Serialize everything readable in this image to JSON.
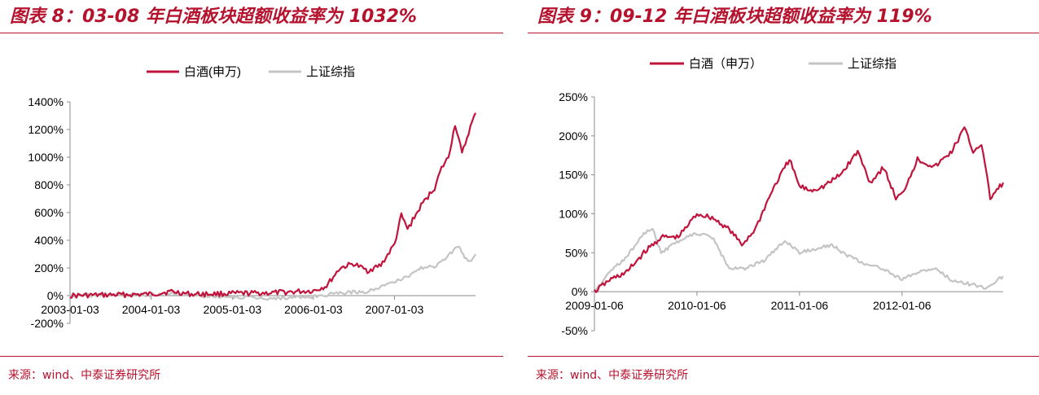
{
  "colors": {
    "accent": "#b5122e",
    "series_baijiu": "#c0143c",
    "series_index": "#c4c4c4"
  },
  "charts": [
    {
      "title": "图表 8：03-08 年白酒板块超额收益率为 1032%",
      "source": "来源：wind、中泰证券研究所",
      "chart_data": {
        "type": "line",
        "title": "",
        "xlabel": "",
        "ylabel": "",
        "x_range": [
          "2003-01-03",
          "2008-01-03"
        ],
        "ylim": [
          -200,
          1400
        ],
        "yticks": [
          -200,
          0,
          200,
          400,
          600,
          800,
          1000,
          1200,
          1400
        ],
        "ytick_labels": [
          "-200%",
          "0%",
          "200%",
          "400%",
          "600%",
          "800%",
          "1000%",
          "1200%",
          "1400%"
        ],
        "xticks": [
          "2003-01-03",
          "2004-01-03",
          "2005-01-03",
          "2006-01-03",
          "2007-01-03"
        ],
        "grid": false,
        "legend_position": "top-center",
        "series": [
          {
            "name": "白酒(申万)",
            "x": [
              "2003-01-03",
              "2003-07-03",
              "2004-01-03",
              "2004-04-03",
              "2004-07-03",
              "2005-01-03",
              "2005-07-03",
              "2006-01-03",
              "2006-03-03",
              "2006-05-03",
              "2006-07-03",
              "2006-09-03",
              "2006-11-03",
              "2007-01-03",
              "2007-02-03",
              "2007-03-03",
              "2007-05-03",
              "2007-07-03",
              "2007-08-03",
              "2007-09-03",
              "2007-10-03",
              "2007-10-20",
              "2007-11-03",
              "2007-12-03",
              "2008-01-03"
            ],
            "values": [
              0,
              5,
              10,
              30,
              10,
              15,
              20,
              35,
              70,
              200,
              230,
              180,
              220,
              370,
              580,
              480,
              650,
              780,
              920,
              1000,
              1240,
              1130,
              1020,
              1180,
              1320
            ]
          },
          {
            "name": "上证综指",
            "x": [
              "2003-01-03",
              "2003-07-03",
              "2004-01-03",
              "2004-04-03",
              "2004-07-03",
              "2005-01-03",
              "2005-07-03",
              "2006-01-03",
              "2006-05-03",
              "2006-09-03",
              "2007-01-03",
              "2007-03-03",
              "2007-05-03",
              "2007-07-03",
              "2007-09-03",
              "2007-10-20",
              "2007-11-15",
              "2007-12-15",
              "2008-01-03"
            ],
            "values": [
              0,
              5,
              5,
              20,
              0,
              -10,
              -20,
              -10,
              20,
              30,
              100,
              140,
              200,
              210,
              290,
              360,
              270,
              250,
              300
            ]
          }
        ]
      }
    },
    {
      "title": "图表 9：09-12 年白酒板块超额收益率为 119%",
      "source": "来源：wind、中泰证券研究所",
      "chart_data": {
        "type": "line",
        "title": "",
        "xlabel": "",
        "ylabel": "",
        "x_range": [
          "2009-01-06",
          "2012-12-31"
        ],
        "ylim": [
          -50,
          250
        ],
        "yticks": [
          -50,
          0,
          50,
          100,
          150,
          200,
          250
        ],
        "ytick_labels": [
          "-50%",
          "0%",
          "50%",
          "100%",
          "150%",
          "200%",
          "250%"
        ],
        "xticks": [
          "2009-01-06",
          "2010-01-06",
          "2011-01-06",
          "2012-01-06"
        ],
        "grid": false,
        "legend_position": "top-center",
        "series": [
          {
            "name": "白酒（申万）",
            "x": [
              "2009-01-06",
              "2009-03-01",
              "2009-05-01",
              "2009-07-01",
              "2009-09-01",
              "2009-11-01",
              "2010-01-06",
              "2010-03-01",
              "2010-05-01",
              "2010-06-15",
              "2010-08-01",
              "2010-10-01",
              "2010-12-01",
              "2011-01-06",
              "2011-02-15",
              "2011-04-01",
              "2011-06-01",
              "2011-08-01",
              "2011-09-15",
              "2011-11-01",
              "2011-12-15",
              "2012-01-06",
              "2012-03-01",
              "2012-05-01",
              "2012-07-01",
              "2012-08-15",
              "2012-09-15",
              "2012-10-15",
              "2012-11-15",
              "2012-12-31"
            ],
            "values": [
              0,
              15,
              25,
              50,
              70,
              70,
              100,
              95,
              80,
              60,
              80,
              130,
              170,
              135,
              130,
              135,
              150,
              180,
              140,
              160,
              120,
              125,
              170,
              160,
              180,
              210,
              180,
              190,
              120,
              140
            ]
          },
          {
            "name": "上证综指",
            "x": [
              "2009-01-06",
              "2009-03-01",
              "2009-05-01",
              "2009-07-01",
              "2009-08-01",
              "2009-09-01",
              "2009-11-01",
              "2010-01-06",
              "2010-03-01",
              "2010-05-01",
              "2010-07-01",
              "2010-09-01",
              "2010-11-15",
              "2011-01-06",
              "2011-03-01",
              "2011-05-01",
              "2011-07-01",
              "2011-09-01",
              "2011-11-01",
              "2012-01-06",
              "2012-03-01",
              "2012-05-01",
              "2012-07-01",
              "2012-09-01",
              "2012-11-01",
              "2012-12-31"
            ],
            "values": [
              0,
              25,
              45,
              75,
              80,
              50,
              65,
              75,
              70,
              30,
              30,
              40,
              65,
              50,
              55,
              60,
              45,
              35,
              30,
              15,
              25,
              30,
              15,
              10,
              5,
              20
            ]
          }
        ]
      }
    }
  ]
}
